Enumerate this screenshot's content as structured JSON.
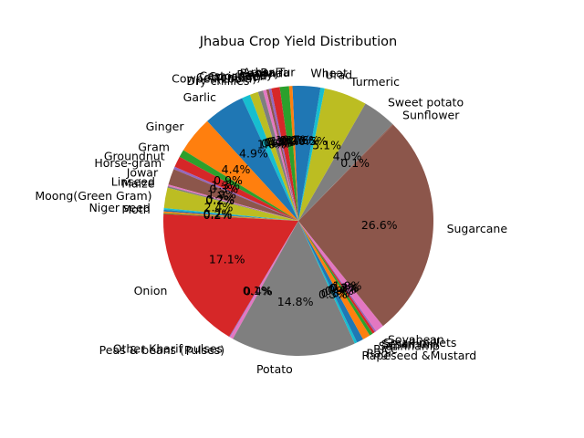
{
  "chart_data": {
    "type": "pie",
    "title": "Jhabua Crop Yield Distribution",
    "start_angle_deg": 90,
    "direction": "counterclockwise",
    "slices": [
      {
        "label": "Arhar/Tur",
        "value": 0.7,
        "pct_label": "0.7%",
        "color": "#1f77b4"
      },
      {
        "label": "Bajra",
        "value": 0.4,
        "pct_label": "0.4%",
        "color": "#ff7f0e"
      },
      {
        "label": "Banana",
        "value": 1.1,
        "pct_label": "1.1%",
        "color": "#2ca02c"
      },
      {
        "label": "Barley",
        "value": 1.0,
        "pct_label": "1.0%",
        "color": "#d62728"
      },
      {
        "label": "Castor seed",
        "value": 0.3,
        "pct_label": "0.3%",
        "color": "#9467bd"
      },
      {
        "label": "Coriander",
        "value": 0.3,
        "pct_label": "0.3%",
        "color": "#8c564b"
      },
      {
        "label": "Cotton(lint)",
        "value": 0.4,
        "pct_label": "0.4%",
        "color": "#e377c2"
      },
      {
        "label": "Cowpea(Lobia)",
        "value": 0.6,
        "pct_label": "0.6%",
        "color": "#7f7f7f"
      },
      {
        "label": "Dry chillies",
        "value": 1.0,
        "pct_label": "1.0%",
        "color": "#bcbd22"
      },
      {
        "label": "",
        "value": 1.0,
        "pct_label": "",
        "color": "#17becf"
      },
      {
        "label": "Garlic",
        "value": 4.9,
        "pct_label": "4.9%",
        "color": "#1f77b4"
      },
      {
        "label": "Ginger",
        "value": 4.4,
        "pct_label": "4.4%",
        "color": "#ff7f0e"
      },
      {
        "label": "Gram",
        "value": 0.9,
        "pct_label": "0.9%",
        "color": "#2ca02c"
      },
      {
        "label": "Groundnut",
        "value": 1.3,
        "pct_label": "1.3%",
        "color": "#d62728"
      },
      {
        "label": "Horse-gram",
        "value": 0.3,
        "pct_label": "0.3%",
        "color": "#9467bd"
      },
      {
        "label": "Jowar",
        "value": 1.9,
        "pct_label": "1.9%",
        "color": "#8c564b"
      },
      {
        "label": "Linseed",
        "value": 0.2,
        "pct_label": "0.2%",
        "color": "#e377c2"
      },
      {
        "label": "Maize",
        "value": 0.2,
        "pct_label": "0.2%",
        "color": "#7f7f7f"
      },
      {
        "label": "Moong(Green Gram)",
        "value": 2.4,
        "pct_label": "2.4%",
        "color": "#bcbd22"
      },
      {
        "label": "Niger seed",
        "value": 0.2,
        "pct_label": "0.2%",
        "color": "#17becf"
      },
      {
        "label": "Moth",
        "value": 0.2,
        "pct_label": "0.2%",
        "color": "#1f77b4"
      },
      {
        "label": "",
        "value": 0.2,
        "pct_label": "",
        "color": "#ff7f0e"
      },
      {
        "label": "",
        "value": 0.1,
        "pct_label": "",
        "color": "#2ca02c"
      },
      {
        "label": "Onion",
        "value": 17.1,
        "pct_label": "17.1%",
        "color": "#d62728"
      },
      {
        "label": "Other Kharif pulses",
        "value": 0.1,
        "pct_label": "0.1%",
        "color": "#9467bd"
      },
      {
        "label": "Peas & beans (Pulses)",
        "value": 0.4,
        "pct_label": "0.4%",
        "color": "#e377c2"
      },
      {
        "label": "Potato",
        "value": 14.8,
        "pct_label": "14.8%",
        "color": "#7f7f7f"
      },
      {
        "label": "Rapeseed &Mustard",
        "value": 0.3,
        "pct_label": "0.3%",
        "color": "#17becf"
      },
      {
        "label": "Ragi",
        "value": 0.8,
        "pct_label": "0.8%",
        "color": "#1f77b4"
      },
      {
        "label": "Rice",
        "value": 0.9,
        "pct_label": "0.9%",
        "color": "#ff7f0e"
      },
      {
        "label": "Sannhamp",
        "value": 0.4,
        "pct_label": "0.4%",
        "color": "#2ca02c"
      },
      {
        "label": "Sesamum",
        "value": 0.3,
        "pct_label": "0.3%",
        "color": "#d62728"
      },
      {
        "label": "Small millets",
        "value": 0.2,
        "pct_label": "0.2%",
        "color": "#9467bd"
      },
      {
        "label": "Soyabean",
        "value": 1.0,
        "pct_label": "1.0%",
        "color": "#e377c2"
      },
      {
        "label": "Sugarcane",
        "value": 26.6,
        "pct_label": "26.6%",
        "color": "#8c564b"
      },
      {
        "label": "Sunflower",
        "value": 0.1,
        "pct_label": "0.1%",
        "color": "#8c564b"
      },
      {
        "label": "Sweet potato",
        "value": 4.0,
        "pct_label": "4.0%",
        "color": "#7f7f7f"
      },
      {
        "label": "Turmeric",
        "value": 5.1,
        "pct_label": "5.1%",
        "color": "#bcbd22"
      },
      {
        "label": "Urad",
        "value": 0.5,
        "pct_label": "0.5%",
        "color": "#17becf"
      },
      {
        "label": "Wheat",
        "value": 2.6,
        "pct_label": "2.6%",
        "color": "#1f77b4"
      }
    ]
  }
}
